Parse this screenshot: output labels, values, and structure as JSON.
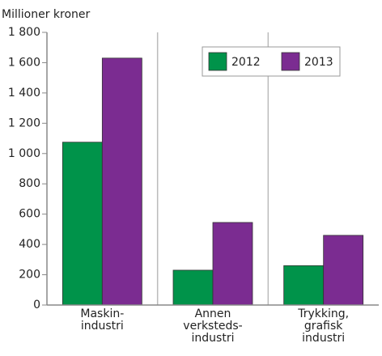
{
  "chart_data": {
    "type": "bar",
    "y_label": "Millioner kroner",
    "categories": [
      "Maskin-\nindustri",
      "Annen\nverksteds-\nindustri",
      "Trykking,\ngrafisk\nindustri"
    ],
    "series": [
      {
        "name": "2012",
        "color": "#00934a",
        "values": [
          1075,
          230,
          260
        ]
      },
      {
        "name": "2013",
        "color": "#7b2c91",
        "values": [
          1630,
          545,
          460
        ]
      }
    ],
    "ylim": [
      0,
      1800
    ],
    "yticks": [
      0,
      200,
      400,
      600,
      800,
      {
        "value": 1000,
        "label": "1 000"
      },
      {
        "value": 1200,
        "label": "1 200"
      },
      {
        "value": 1400,
        "label": "1 400"
      },
      {
        "value": 1600,
        "label": "1 600"
      },
      {
        "value": 1800,
        "label": "1 800"
      }
    ],
    "legend": "top-right"
  }
}
